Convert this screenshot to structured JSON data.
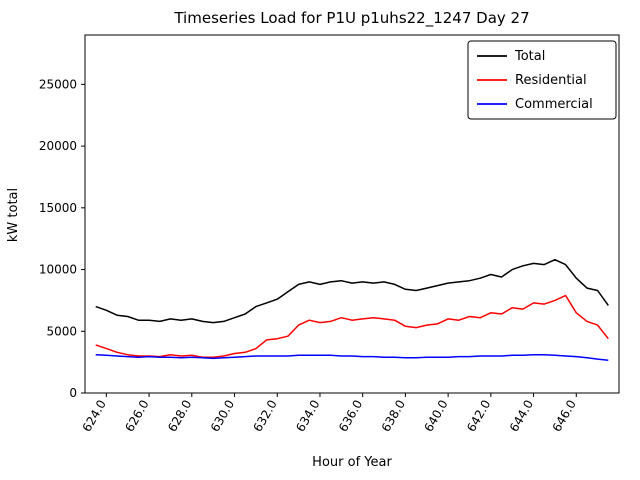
{
  "chart_data": {
    "type": "line",
    "title": "Timeseries Load for P1U p1uhs22_1247  Day 27",
    "xlabel": "Hour of Year",
    "ylabel": "kW total",
    "xlim": [
      623.0,
      648.0
    ],
    "ylim": [
      0,
      29000
    ],
    "grid": false,
    "legend_position": "upper right",
    "x_tick_values": [
      624,
      626,
      628,
      630,
      632,
      634,
      636,
      638,
      640,
      642,
      644,
      646
    ],
    "x_tick_labels": [
      "624.0",
      "626.0",
      "628.0",
      "630.0",
      "632.0",
      "634.0",
      "636.0",
      "638.0",
      "640.0",
      "642.0",
      "644.0",
      "646.0"
    ],
    "y_tick_values": [
      0,
      5000,
      10000,
      15000,
      20000,
      25000
    ],
    "y_tick_labels": [
      "0",
      "5000",
      "10000",
      "15000",
      "20000",
      "25000"
    ],
    "x": [
      623.5,
      624,
      624.5,
      625,
      625.5,
      626,
      626.5,
      627,
      627.5,
      628,
      628.5,
      629,
      629.5,
      630,
      630.5,
      631,
      631.5,
      632,
      632.5,
      633,
      633.5,
      634,
      634.5,
      635,
      635.5,
      636,
      636.5,
      637,
      637.5,
      638,
      638.5,
      639,
      639.5,
      640,
      640.5,
      641,
      641.5,
      642,
      642.5,
      643,
      643.5,
      644,
      644.5,
      645,
      645.5,
      646,
      646.5,
      647,
      647.5
    ],
    "series": [
      {
        "name": "Total",
        "color": "#000000",
        "values": [
          7000,
          6700,
          6300,
          6200,
          5900,
          5900,
          5800,
          6000,
          5900,
          6000,
          5800,
          5700,
          5800,
          6100,
          6400,
          7000,
          7300,
          7600,
          8200,
          8800,
          9000,
          8800,
          9000,
          9100,
          8900,
          9000,
          8900,
          9000,
          8800,
          8400,
          8300,
          8500,
          8700,
          8900,
          9000,
          9100,
          9300,
          9600,
          9400,
          10000,
          10300,
          10500,
          10400,
          10800,
          10400,
          9300,
          8500,
          8300,
          7100
        ]
      },
      {
        "name": "Residential",
        "color": "#ff0000",
        "values": [
          3900,
          3600,
          3300,
          3100,
          3000,
          3000,
          2950,
          3100,
          3000,
          3050,
          2900,
          2900,
          3000,
          3200,
          3300,
          3600,
          4300,
          4400,
          4600,
          5500,
          5900,
          5700,
          5800,
          6100,
          5900,
          6000,
          6100,
          6000,
          5900,
          5400,
          5300,
          5500,
          5600,
          6000,
          5900,
          6200,
          6100,
          6500,
          6400,
          6900,
          6800,
          7300,
          7200,
          7500,
          7900,
          6500,
          5800,
          5500,
          4400
        ]
      },
      {
        "name": "Commercial",
        "color": "#0000ff",
        "values": [
          3100,
          3050,
          3000,
          2950,
          2900,
          2950,
          2900,
          2900,
          2850,
          2900,
          2850,
          2800,
          2850,
          2900,
          2950,
          3000,
          3000,
          3000,
          3000,
          3050,
          3050,
          3050,
          3050,
          3000,
          3000,
          2950,
          2950,
          2900,
          2900,
          2850,
          2850,
          2900,
          2900,
          2900,
          2950,
          2950,
          3000,
          3000,
          3000,
          3050,
          3050,
          3100,
          3100,
          3050,
          3000,
          2950,
          2850,
          2750,
          2650
        ]
      }
    ]
  }
}
